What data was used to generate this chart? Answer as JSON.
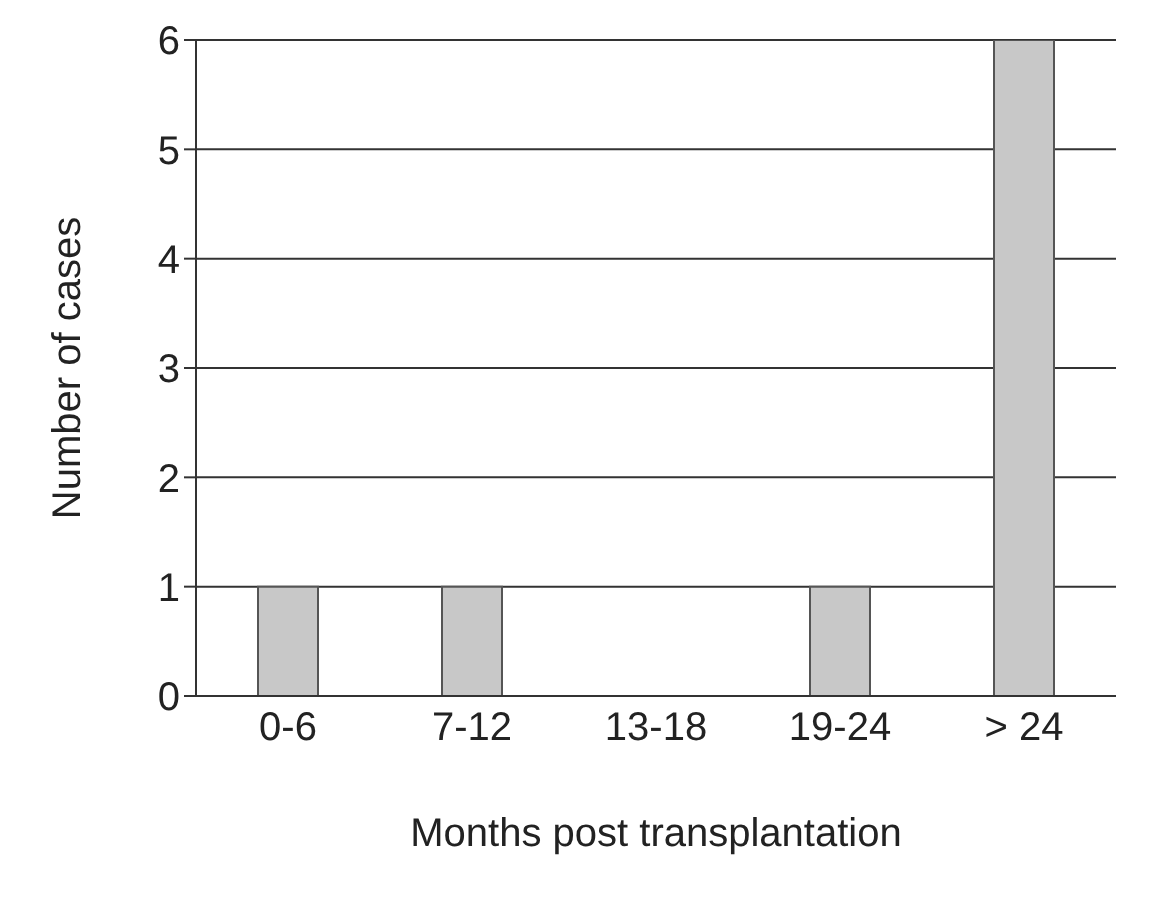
{
  "chart_data": {
    "type": "bar",
    "xlabel": "Months post transplantation",
    "ylabel": "Number of cases",
    "categories": [
      "0-6",
      "7-12",
      "13-18",
      "19-24",
      "> 24"
    ],
    "values": [
      1,
      1,
      0,
      1,
      6
    ],
    "color": "#c8c8c8",
    "ylim": [
      0,
      6
    ],
    "yticks": [
      0,
      1,
      2,
      3,
      4,
      5,
      6
    ],
    "grid": "y"
  }
}
